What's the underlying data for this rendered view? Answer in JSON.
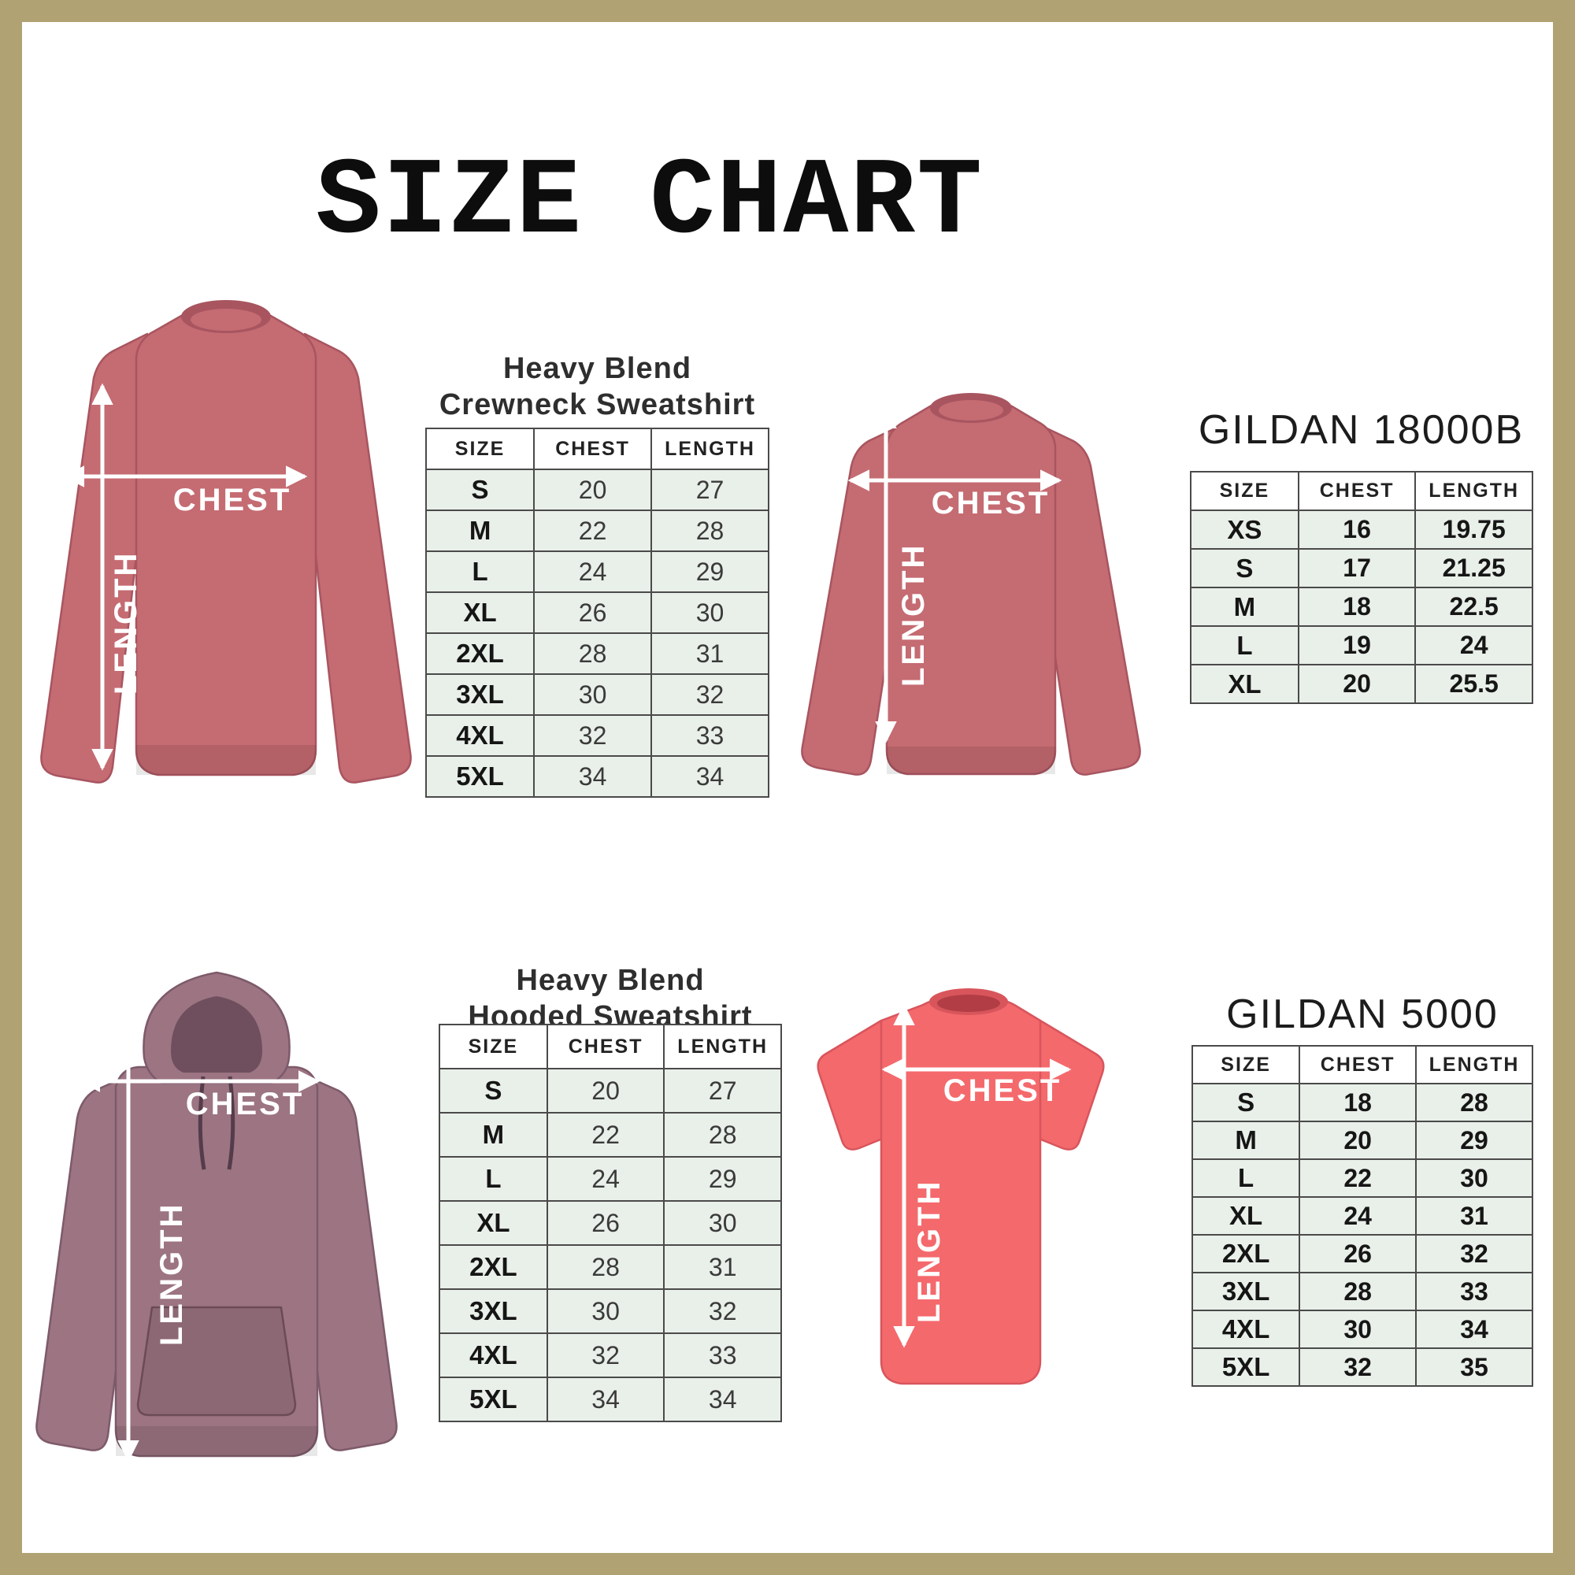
{
  "title": "SIZE CHART",
  "labels": {
    "chest": "CHEST",
    "length": "LENGTH"
  },
  "sections": [
    {
      "id": "crewneck",
      "product_line1": "Heavy Blend",
      "product_line2": "Crewneck Sweatshirt",
      "garment": "crewneck-sweatshirt",
      "table": {
        "headers": [
          "SIZE",
          "CHEST",
          "LENGTH"
        ],
        "rows": [
          [
            "S",
            "20",
            "27"
          ],
          [
            "M",
            "22",
            "28"
          ],
          [
            "L",
            "24",
            "29"
          ],
          [
            "XL",
            "26",
            "30"
          ],
          [
            "2XL",
            "28",
            "31"
          ],
          [
            "3XL",
            "30",
            "32"
          ],
          [
            "4XL",
            "32",
            "33"
          ],
          [
            "5XL",
            "34",
            "34"
          ]
        ]
      }
    },
    {
      "id": "gildan-18000b",
      "product_title": "GILDAN 18000B",
      "garment": "crewneck-sweatshirt",
      "table": {
        "headers": [
          "SIZE",
          "CHEST",
          "LENGTH"
        ],
        "rows": [
          [
            "XS",
            "16",
            "19.75"
          ],
          [
            "S",
            "17",
            "21.25"
          ],
          [
            "M",
            "18",
            "22.5"
          ],
          [
            "L",
            "19",
            "24"
          ],
          [
            "XL",
            "20",
            "25.5"
          ]
        ]
      }
    },
    {
      "id": "hooded",
      "product_line1": "Heavy Blend",
      "product_line2": "Hooded Sweatshirt",
      "garment": "hooded-sweatshirt",
      "table": {
        "headers": [
          "SIZE",
          "CHEST",
          "LENGTH"
        ],
        "rows": [
          [
            "S",
            "20",
            "27"
          ],
          [
            "M",
            "22",
            "28"
          ],
          [
            "L",
            "24",
            "29"
          ],
          [
            "XL",
            "26",
            "30"
          ],
          [
            "2XL",
            "28",
            "31"
          ],
          [
            "3XL",
            "30",
            "32"
          ],
          [
            "4XL",
            "32",
            "33"
          ],
          [
            "5XL",
            "34",
            "34"
          ]
        ]
      }
    },
    {
      "id": "gildan-5000",
      "product_title": "GILDAN 5000",
      "garment": "t-shirt",
      "table": {
        "headers": [
          "SIZE",
          "CHEST",
          "LENGTH"
        ],
        "rows": [
          [
            "S",
            "18",
            "28"
          ],
          [
            "M",
            "20",
            "29"
          ],
          [
            "L",
            "22",
            "30"
          ],
          [
            "XL",
            "24",
            "31"
          ],
          [
            "2XL",
            "26",
            "32"
          ],
          [
            "3XL",
            "28",
            "33"
          ],
          [
            "4XL",
            "30",
            "34"
          ],
          [
            "5XL",
            "32",
            "35"
          ]
        ]
      }
    }
  ],
  "colors": {
    "frame": "#b0a273",
    "crewneck": "#c56b72",
    "crewneck-dark": "#a85560",
    "hoodie": "#9c7482",
    "hoodie-dark": "#7d5a6a",
    "hood-inner": "#6f4f5e",
    "drawstring": "#553c4b",
    "tshirt": "#f4696c",
    "tshirt-dark": "#d8555c",
    "tshirt-collar": "#b23d45",
    "cell": "#e9efe9",
    "tborder": "#4a4a4a",
    "arrow": "#ffffff"
  },
  "chart_data": [
    {
      "type": "table",
      "title": "Heavy Blend Crewneck Sweatshirt",
      "columns": [
        "SIZE",
        "CHEST",
        "LENGTH"
      ],
      "rows": [
        [
          "S",
          20,
          27
        ],
        [
          "M",
          22,
          28
        ],
        [
          "L",
          24,
          29
        ],
        [
          "XL",
          26,
          30
        ],
        [
          "2XL",
          28,
          31
        ],
        [
          "3XL",
          30,
          32
        ],
        [
          "4XL",
          32,
          33
        ],
        [
          "5XL",
          34,
          34
        ]
      ]
    },
    {
      "type": "table",
      "title": "GILDAN 18000B",
      "columns": [
        "SIZE",
        "CHEST",
        "LENGTH"
      ],
      "rows": [
        [
          "XS",
          16,
          19.75
        ],
        [
          "S",
          17,
          21.25
        ],
        [
          "M",
          18,
          22.5
        ],
        [
          "L",
          19,
          24
        ],
        [
          "XL",
          20,
          25.5
        ]
      ]
    },
    {
      "type": "table",
      "title": "Heavy Blend Hooded Sweatshirt",
      "columns": [
        "SIZE",
        "CHEST",
        "LENGTH"
      ],
      "rows": [
        [
          "S",
          20,
          27
        ],
        [
          "M",
          22,
          28
        ],
        [
          "L",
          24,
          29
        ],
        [
          "XL",
          26,
          30
        ],
        [
          "2XL",
          28,
          31
        ],
        [
          "3XL",
          30,
          32
        ],
        [
          "4XL",
          32,
          33
        ],
        [
          "5XL",
          34,
          34
        ]
      ]
    },
    {
      "type": "table",
      "title": "GILDAN 5000",
      "columns": [
        "SIZE",
        "CHEST",
        "LENGTH"
      ],
      "rows": [
        [
          "S",
          18,
          28
        ],
        [
          "M",
          20,
          29
        ],
        [
          "L",
          22,
          30
        ],
        [
          "XL",
          24,
          31
        ],
        [
          "2XL",
          26,
          32
        ],
        [
          "3XL",
          28,
          33
        ],
        [
          "4XL",
          30,
          34
        ],
        [
          "5XL",
          32,
          35
        ]
      ]
    }
  ]
}
